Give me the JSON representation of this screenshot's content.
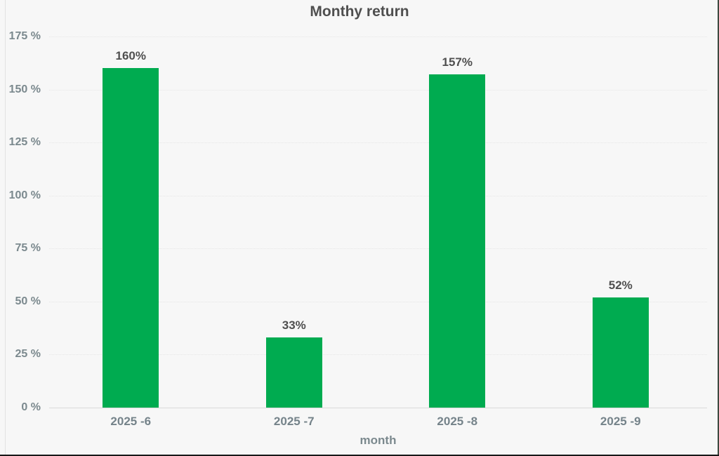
{
  "chart_data": {
    "type": "bar",
    "title": "Monthy return",
    "xlabel": "month",
    "ylabel": "",
    "categories": [
      "2025 -6",
      "2025 -7",
      "2025 -8",
      "2025 -9"
    ],
    "values": [
      160,
      33,
      157,
      52
    ],
    "bar_labels": [
      "160%",
      "33%",
      "157%",
      "52%"
    ],
    "yticks": [
      {
        "value": 0,
        "label": "0 %"
      },
      {
        "value": 25,
        "label": "25 %"
      },
      {
        "value": 50,
        "label": "50 %"
      },
      {
        "value": 75,
        "label": "75 %"
      },
      {
        "value": 100,
        "label": "100 %"
      },
      {
        "value": 125,
        "label": "125 %"
      },
      {
        "value": 150,
        "label": "150 %"
      },
      {
        "value": 175,
        "label": "175 %"
      }
    ],
    "ylim": [
      0,
      175
    ],
    "grid": true,
    "legend": null,
    "colors": {
      "bar": "#00ab50",
      "axis_text": "#7b898e",
      "title_text": "#4f4f4f",
      "value_text": "#4f4f4f",
      "background": "#f7f7f7",
      "gridline": "#e6e6e6",
      "baseline": "#d9d9d9"
    }
  }
}
